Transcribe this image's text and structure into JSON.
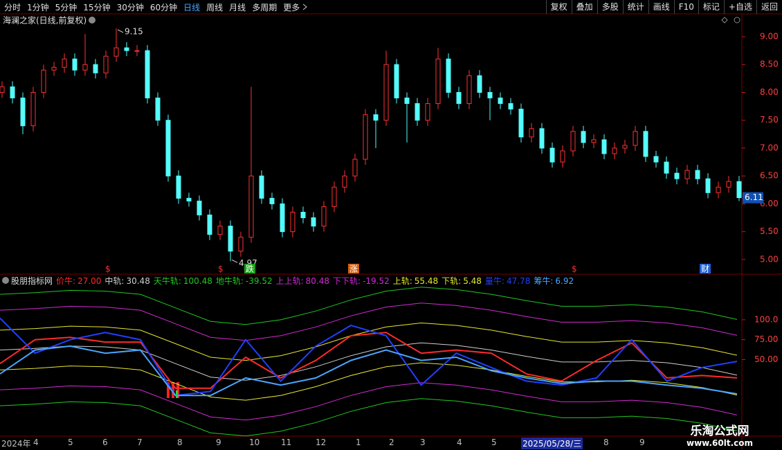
{
  "toolbar": {
    "periods": [
      {
        "label": "分时"
      },
      {
        "label": "1分钟"
      },
      {
        "label": "5分钟"
      },
      {
        "label": "15分钟"
      },
      {
        "label": "30分钟"
      },
      {
        "label": "60分钟"
      },
      {
        "label": "日线",
        "active": true
      },
      {
        "label": "周线"
      },
      {
        "label": "月线"
      },
      {
        "label": "多周期"
      },
      {
        "label": "更多"
      }
    ],
    "tools": [
      "复权",
      "叠加",
      "多股",
      "统计",
      "画线",
      "F10",
      "标记",
      "+自选",
      "返回"
    ]
  },
  "chart_data": [
    {
      "type": "candlestick",
      "title": "海澜之家(日线,前复权)",
      "open": [
        8.0,
        8.1,
        7.9,
        7.4,
        8.0,
        8.4,
        8.45,
        8.6,
        8.4,
        8.5,
        8.35,
        8.65,
        8.8,
        8.75,
        8.75,
        7.9,
        7.5,
        6.5,
        6.1,
        6.05,
        5.8,
        5.45,
        5.6,
        5.15,
        5.4,
        6.5,
        6.1,
        6.0,
        5.5,
        5.85,
        5.75,
        5.6,
        5.95,
        6.3,
        6.5,
        6.8,
        7.6,
        7.5,
        8.5,
        7.9,
        7.8,
        7.5,
        7.8,
        8.6,
        8.0,
        7.8,
        8.3,
        8.0,
        7.9,
        7.8,
        7.7,
        7.2,
        7.35,
        7.0,
        6.75,
        6.95,
        7.3,
        7.1,
        7.15,
        6.9,
        7.0,
        7.05,
        7.3,
        6.85,
        6.75,
        6.55,
        6.45,
        6.6,
        6.45,
        6.2,
        6.3,
        6.4
      ],
      "high": [
        8.2,
        8.2,
        8.0,
        8.1,
        8.5,
        8.55,
        8.7,
        8.7,
        9.05,
        8.6,
        8.75,
        9.15,
        8.9,
        8.85,
        8.85,
        8.0,
        7.6,
        6.6,
        6.2,
        6.15,
        5.9,
        5.7,
        5.7,
        5.5,
        8.1,
        6.6,
        6.2,
        6.1,
        5.95,
        5.95,
        5.85,
        6.05,
        6.4,
        6.6,
        6.9,
        7.7,
        7.7,
        8.75,
        8.6,
        8.0,
        7.9,
        7.9,
        8.8,
        8.7,
        8.1,
        8.4,
        8.4,
        8.1,
        8.0,
        7.9,
        7.8,
        7.45,
        7.45,
        7.1,
        7.05,
        7.4,
        7.4,
        7.25,
        7.25,
        7.1,
        7.15,
        7.4,
        7.4,
        6.95,
        6.85,
        6.65,
        6.7,
        6.7,
        6.55,
        6.4,
        6.5,
        6.5
      ],
      "low": [
        7.9,
        7.8,
        7.25,
        7.3,
        7.9,
        8.3,
        8.35,
        8.3,
        8.3,
        8.25,
        8.25,
        8.55,
        8.65,
        8.65,
        7.8,
        7.4,
        6.4,
        6.0,
        5.95,
        5.7,
        5.35,
        5.35,
        4.97,
        5.05,
        5.3,
        6.0,
        5.9,
        5.4,
        5.4,
        5.65,
        5.5,
        5.5,
        5.85,
        6.2,
        6.4,
        6.7,
        7.0,
        7.4,
        7.8,
        7.1,
        7.4,
        7.4,
        7.7,
        7.9,
        7.7,
        7.7,
        7.9,
        7.5,
        7.7,
        7.6,
        7.1,
        7.1,
        6.9,
        6.65,
        6.65,
        6.85,
        7.0,
        7.0,
        6.8,
        6.8,
        6.9,
        6.95,
        6.75,
        6.65,
        6.45,
        6.35,
        6.35,
        6.35,
        6.1,
        6.1,
        6.2,
        6.05
      ],
      "close": [
        8.1,
        7.9,
        7.4,
        8.0,
        8.4,
        8.45,
        8.6,
        8.4,
        8.5,
        8.35,
        8.65,
        8.8,
        8.75,
        8.75,
        7.9,
        7.5,
        6.5,
        6.1,
        6.05,
        5.8,
        5.45,
        5.6,
        5.15,
        5.4,
        6.5,
        6.1,
        6.0,
        5.5,
        5.85,
        5.75,
        5.6,
        5.95,
        6.3,
        6.5,
        6.8,
        7.6,
        7.5,
        8.5,
        7.9,
        7.8,
        7.5,
        7.8,
        8.6,
        8.0,
        7.8,
        8.3,
        8.0,
        7.9,
        7.8,
        7.7,
        7.2,
        7.35,
        7.0,
        6.75,
        6.95,
        7.3,
        7.1,
        7.15,
        6.9,
        7.0,
        7.05,
        7.3,
        6.85,
        6.75,
        6.55,
        6.45,
        6.6,
        6.45,
        6.2,
        6.3,
        6.4,
        6.11
      ],
      "up_color": "#ff3232",
      "down_color": "#54fcfc",
      "ylim": [
        4.75,
        9.41
      ],
      "yticks": [
        {
          "value": 9,
          "label": "9.00"
        },
        {
          "value": 8.5,
          "label": "8.50"
        },
        {
          "value": 8,
          "label": "8.00"
        },
        {
          "value": 7.5,
          "label": "7.50"
        },
        {
          "value": 7,
          "label": "7.00"
        },
        {
          "value": 6.5,
          "label": "6.50"
        },
        {
          "value": 6,
          "label": "6.00"
        },
        {
          "value": 5.5,
          "label": "5.50"
        },
        {
          "value": 5,
          "label": "5.00"
        }
      ],
      "events": [
        "$",
        "$",
        "跌",
        "涨",
        "$",
        "财"
      ]
    },
    {
      "type": "line",
      "title": "股朋指标网",
      "series": [
        {
          "name": "价牛:",
          "readout": "27.00",
          "color": "#ff2a2a",
          "values": [
            45,
            75,
            78,
            72,
            72,
            14,
            14,
            53,
            27,
            49,
            80,
            84,
            58,
            62,
            58,
            32,
            23,
            49,
            71,
            27,
            30,
            27
          ]
        },
        {
          "name": "中轨:",
          "readout": "30.48",
          "color": "#d0d0d0",
          "values": [
            62,
            64,
            67,
            66,
            62,
            45,
            28,
            24,
            30,
            41,
            55,
            66,
            71,
            68,
            62,
            54,
            47,
            47,
            49,
            46,
            40,
            30.48
          ]
        },
        {
          "name": "天牛轨:",
          "readout": "100.48",
          "color": "#22c822",
          "values": [
            132,
            134,
            137,
            136,
            132,
            115,
            98,
            94,
            100,
            111,
            125,
            136,
            141,
            138,
            132,
            124,
            117,
            117,
            119,
            116,
            110,
            100.48
          ]
        },
        {
          "name": "地牛轨:",
          "readout": "-39.52",
          "color": "#22c822",
          "values": [
            -8,
            -6,
            -3,
            -4,
            -8,
            -25,
            -42,
            -46,
            -40,
            -29,
            -15,
            -4,
            1,
            -2,
            -8,
            -16,
            -23,
            -23,
            -21,
            -24,
            -30,
            -39.52
          ]
        },
        {
          "name": "上上轨:",
          "readout": "80.48",
          "color": "#d42ad4",
          "values": [
            112,
            114,
            117,
            116,
            112,
            95,
            78,
            74,
            80,
            91,
            105,
            116,
            121,
            118,
            112,
            104,
            97,
            97,
            99,
            96,
            90,
            80.48
          ]
        },
        {
          "name": "下下轨:",
          "readout": "-19.52",
          "color": "#d42ad4",
          "values": [
            12,
            14,
            17,
            16,
            12,
            -5,
            -22,
            -26,
            -20,
            -9,
            5,
            16,
            21,
            18,
            12,
            4,
            -3,
            -3,
            -1,
            -4,
            -10,
            -19.52
          ]
        },
        {
          "name": "上轨:",
          "readout": "55.48",
          "color": "#e8e830",
          "values": [
            87,
            89,
            92,
            91,
            87,
            70,
            53,
            49,
            55,
            66,
            80,
            91,
            96,
            93,
            87,
            79,
            72,
            72,
            74,
            71,
            65,
            55.48
          ]
        },
        {
          "name": "下轨:",
          "readout": "5.48",
          "color": "#e8e830",
          "values": [
            37,
            39,
            42,
            41,
            37,
            20,
            3,
            -1,
            5,
            16,
            30,
            41,
            46,
            43,
            37,
            29,
            22,
            22,
            24,
            21,
            15,
            5.48
          ]
        },
        {
          "name": "量牛:",
          "readout": "47.78",
          "color": "#2040ff",
          "values": [
            102,
            58,
            75,
            84,
            75,
            5,
            10,
            75,
            23,
            67,
            93,
            80,
            18,
            58,
            40,
            23,
            18,
            27,
            75,
            23,
            40,
            47.78
          ]
        },
        {
          "name": "筹牛:",
          "readout": "6.92",
          "color": "#4aa6ff",
          "values": [
            32,
            62,
            67,
            58,
            62,
            5,
            5,
            27,
            18,
            27,
            49,
            62,
            49,
            53,
            36,
            27,
            20,
            23,
            23,
            18,
            14,
            6.92
          ]
        }
      ],
      "ylim": [
        -47,
        146
      ],
      "yticks": [
        {
          "value": 100,
          "label": "100.0"
        },
        {
          "value": 75,
          "label": "75.00"
        },
        {
          "value": 50,
          "label": "50.00"
        }
      ]
    }
  ],
  "time_axis": {
    "labels": [
      "2024年",
      "4",
      "5",
      "6",
      "7",
      "8",
      "9",
      "10",
      "11",
      "12",
      "1",
      "2",
      "3",
      "4",
      "5",
      "8",
      "9"
    ],
    "cursor": "2025/05/28/三"
  },
  "watermark": {
    "title": "乐淘公式网",
    "url": "www.60lt.com"
  }
}
